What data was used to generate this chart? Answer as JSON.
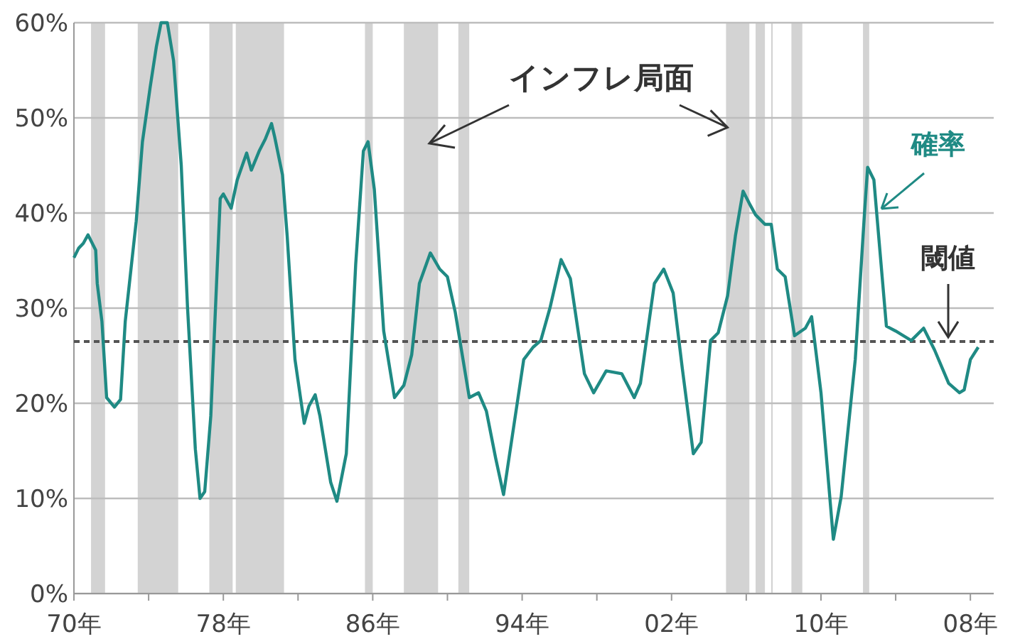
{
  "chart_data": {
    "type": "line",
    "x": [
      "1970-01",
      "1970-04",
      "1970-07",
      "1970-10",
      "1971-03",
      "1971-04",
      "1971-07",
      "1971-10",
      "1972-03",
      "1972-07",
      "1972-10",
      "1973-05",
      "1973-09",
      "1974-02",
      "1974-06",
      "1974-09",
      "1974-11",
      "1975-01",
      "1975-05",
      "1975-10",
      "1976-02",
      "1976-07",
      "1976-10",
      "1977-01",
      "1977-05",
      "1977-11",
      "1978-01",
      "1978-06",
      "1978-10",
      "1979-04",
      "1979-07",
      "1979-12",
      "1980-04",
      "1980-08",
      "1980-10",
      "1981-03",
      "1981-06",
      "1981-11",
      "1982-05",
      "1982-08",
      "1982-12",
      "1983-03",
      "1983-10",
      "1984-02",
      "1984-08",
      "1985-02",
      "1985-07",
      "1985-10",
      "1986-02",
      "1986-08",
      "1987-03",
      "1987-09",
      "1988-02",
      "1988-07",
      "1989-02",
      "1989-08",
      "1990-01",
      "1990-06",
      "1991-03",
      "1991-09",
      "1992-02",
      "1992-08",
      "1993-01",
      "1993-05",
      "1994-02",
      "1994-08",
      "1995-01",
      "1995-07",
      "1996-02",
      "1996-08",
      "1997-05",
      "1997-11",
      "1998-07",
      "1999-05",
      "2000-01",
      "2000-05",
      "2001-02",
      "2001-08",
      "2002-02",
      "2002-08",
      "2003-03",
      "2003-08",
      "2004-02",
      "2004-07",
      "2005-01",
      "2005-06",
      "2005-11",
      "2006-03",
      "2006-07",
      "2007-01",
      "2007-05",
      "2007-09",
      "2008-02",
      "2008-08",
      "2009-03",
      "2009-07",
      "2010-01",
      "2010-09",
      "2011-02",
      "2011-11",
      "2012-05",
      "2012-07",
      "2012-11",
      "2013-01",
      "2013-07",
      "2014-01",
      "2014-11",
      "2015-07",
      "2016-02",
      "2016-11",
      "2017-06",
      "2017-09",
      "2018-01",
      "2018-06"
    ],
    "series": [
      {
        "name": "確率",
        "color": "#1f8a84",
        "values": [
          35.3,
          36.3,
          36.8,
          37.7,
          36.1,
          32.6,
          28.6,
          20.6,
          19.6,
          20.4,
          28.6,
          39.1,
          47.5,
          53.2,
          57.5,
          60,
          60,
          60,
          56.0,
          45.0,
          30.1,
          15.2,
          10.0,
          10.7,
          18.7,
          41.5,
          42.0,
          40.5,
          43.5,
          46.3,
          44.5,
          46.5,
          47.8,
          49.4,
          48.0,
          44.0,
          37.6,
          24.6,
          17.9,
          19.7,
          20.9,
          18.7,
          11.7,
          9.7,
          14.7,
          34.6,
          46.5,
          47.5,
          42.5,
          27.6,
          20.6,
          21.9,
          25.1,
          32.6,
          35.8,
          34.1,
          33.3,
          29.6,
          20.6,
          21.1,
          19.2,
          14.2,
          10.4,
          14.7,
          24.6,
          25.9,
          26.6,
          30.1,
          35.1,
          33.1,
          23.1,
          21.1,
          23.4,
          23.1,
          20.6,
          22.1,
          32.6,
          34.1,
          31.6,
          23.6,
          14.7,
          15.9,
          26.6,
          27.4,
          31.3,
          37.6,
          42.3,
          41.0,
          39.8,
          38.8,
          38.8,
          34.1,
          33.3,
          27.1,
          27.9,
          29.1,
          21.1,
          5.7,
          10.2,
          24.6,
          40.0,
          44.8,
          43.5,
          39.6,
          28.1,
          27.6,
          26.6,
          27.9,
          25.6,
          22.1,
          21.1,
          21.4,
          24.6,
          25.9
        ]
      }
    ],
    "xlim": [
      "1970-01",
      "2019-04"
    ],
    "xticks": [
      {
        "value": "1970",
        "label": "70年"
      },
      {
        "value": "1974",
        "label": null
      },
      {
        "value": "1978",
        "label": "78年"
      },
      {
        "value": "1982",
        "label": null
      },
      {
        "value": "1986",
        "label": "86年"
      },
      {
        "value": "1990",
        "label": null
      },
      {
        "value": "1994",
        "label": "94年"
      },
      {
        "value": "1998",
        "label": null
      },
      {
        "value": "2002",
        "label": "02年"
      },
      {
        "value": "2006",
        "label": null
      },
      {
        "value": "2010",
        "label": "10年"
      },
      {
        "value": "2014",
        "label": null
      },
      {
        "value": "2018",
        "label": "08年"
      }
    ],
    "ylim": [
      0,
      60
    ],
    "yticks": [
      {
        "value": 0,
        "label": "0%"
      },
      {
        "value": 10,
        "label": "10%"
      },
      {
        "value": 20,
        "label": "20%"
      },
      {
        "value": 30,
        "label": "30%"
      },
      {
        "value": 40,
        "label": "40%"
      },
      {
        "value": 50,
        "label": "50%"
      },
      {
        "value": 60,
        "label": "60%"
      }
    ],
    "grid": "y",
    "line_style": "solid",
    "ref_lines": [
      {
        "axis": "y",
        "value": 26.5,
        "label": "閾値",
        "color": "#555555",
        "line_style": "dashed"
      }
    ],
    "bands": [
      {
        "axis": "x",
        "from": "1970-12",
        "to": "1971-09",
        "color": "#d3d3d3"
      },
      {
        "axis": "x",
        "from": "1973-06",
        "to": "1975-08",
        "color": "#d3d3d3"
      },
      {
        "axis": "x",
        "from": "1977-04",
        "to": "1978-07",
        "color": "#d3d3d3"
      },
      {
        "axis": "x",
        "from": "1978-09",
        "to": "1981-04",
        "color": "#d3d3d3"
      },
      {
        "axis": "x",
        "from": "1985-08",
        "to": "1986-01",
        "color": "#d3d3d3"
      },
      {
        "axis": "x",
        "from": "1987-09",
        "to": "1989-07",
        "color": "#d3d3d3"
      },
      {
        "axis": "x",
        "from": "1990-08",
        "to": "1991-03",
        "color": "#d3d3d3"
      },
      {
        "axis": "x",
        "from": "2004-12",
        "to": "2006-03",
        "color": "#d3d3d3"
      },
      {
        "axis": "x",
        "from": "2006-07",
        "to": "2007-01",
        "color": "#d3d3d3"
      },
      {
        "axis": "x",
        "from": "2007-05",
        "to": "2007-06",
        "color": "#d3d3d3"
      },
      {
        "axis": "x",
        "from": "2008-06",
        "to": "2009-01",
        "color": "#d3d3d3"
      },
      {
        "axis": "x",
        "from": "2012-04",
        "to": "2012-08",
        "color": "#d3d3d3"
      }
    ],
    "annotations": [
      {
        "text": "インフレ局面",
        "x": "2005-01",
        "y": 49
      }
    ]
  }
}
